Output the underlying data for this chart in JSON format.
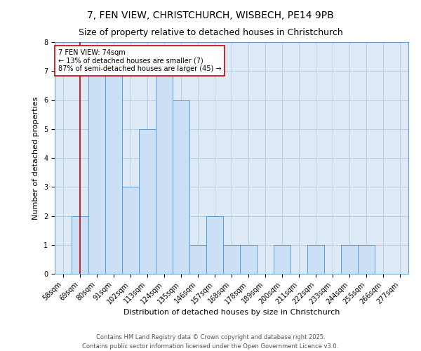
{
  "title1": "7, FEN VIEW, CHRISTCHURCH, WISBECH, PE14 9PB",
  "title2": "Size of property relative to detached houses in Christchurch",
  "xlabel": "Distribution of detached houses by size in Christchurch",
  "ylabel": "Number of detached properties",
  "bin_labels": [
    "58sqm",
    "69sqm",
    "80sqm",
    "91sqm",
    "102sqm",
    "113sqm",
    "124sqm",
    "135sqm",
    "146sqm",
    "157sqm",
    "168sqm",
    "178sqm",
    "189sqm",
    "200sqm",
    "211sqm",
    "222sqm",
    "233sqm",
    "244sqm",
    "255sqm",
    "266sqm",
    "277sqm"
  ],
  "bar_heights": [
    0,
    2,
    7,
    7,
    3,
    5,
    7,
    6,
    1,
    2,
    1,
    1,
    0,
    1,
    0,
    1,
    0,
    1,
    1,
    0,
    0
  ],
  "bar_color": "#cce0f5",
  "bar_edge_color": "#5b9bd5",
  "highlight_bar_index": 1,
  "highlight_line_color": "#cc0000",
  "ylim": [
    0,
    8
  ],
  "yticks": [
    0,
    1,
    2,
    3,
    4,
    5,
    6,
    7,
    8
  ],
  "annotation_title": "7 FEN VIEW: 74sqm",
  "annotation_line1": "← 13% of detached houses are smaller (7)",
  "annotation_line2": "87% of semi-detached houses are larger (45) →",
  "annotation_box_color": "#ffffff",
  "annotation_box_edge": "#cc0000",
  "footer1": "Contains HM Land Registry data © Crown copyright and database right 2025.",
  "footer2": "Contains public sector information licensed under the Open Government Licence v3.0.",
  "bg_color": "#ffffff",
  "plot_bg_color": "#deeaf5",
  "grid_color": "#b8cfe8",
  "title_fontsize": 10,
  "subtitle_fontsize": 9,
  "axis_label_fontsize": 8,
  "tick_fontsize": 7,
  "annotation_fontsize": 7,
  "footer_fontsize": 6
}
